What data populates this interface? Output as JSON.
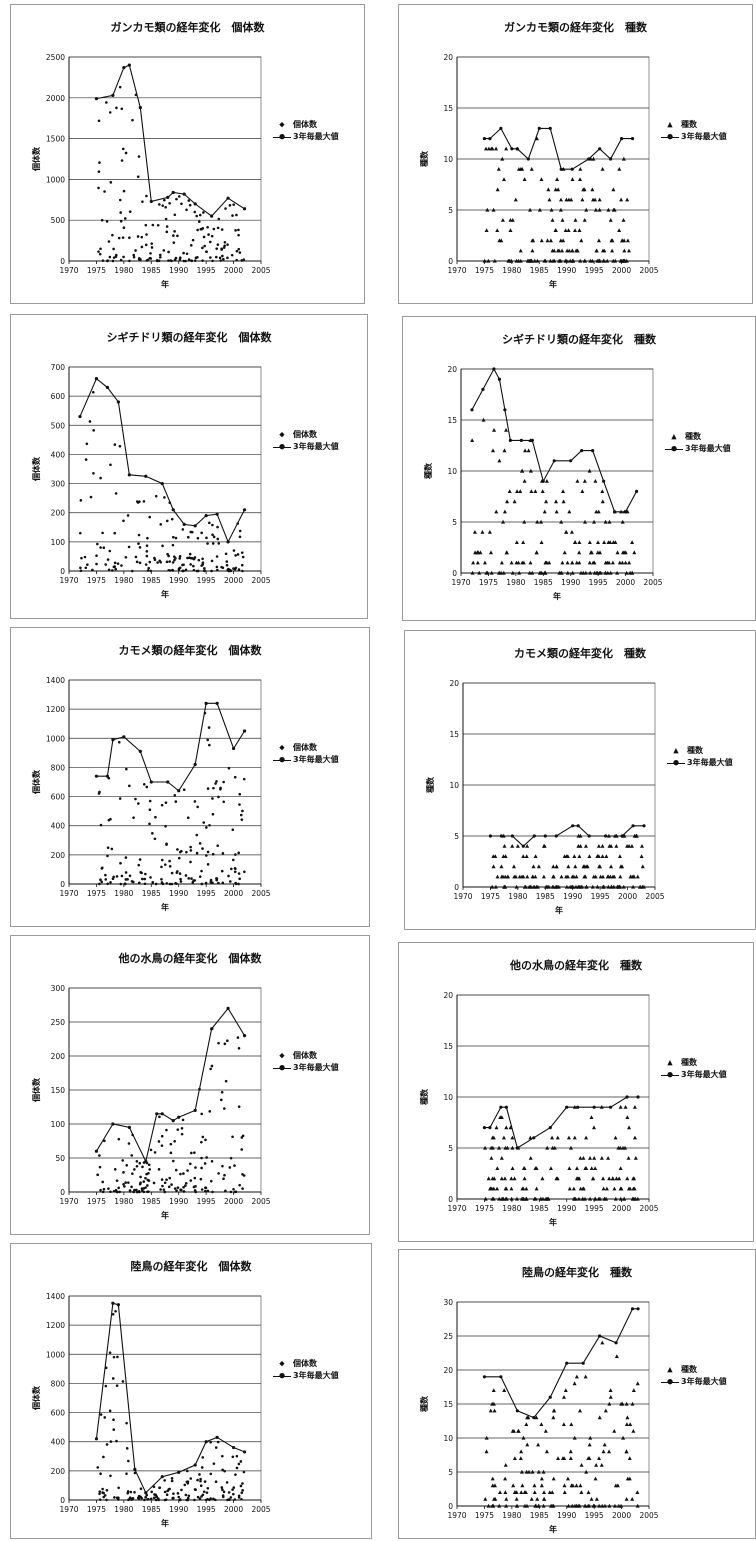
{
  "legend": {
    "count": "個体数",
    "species": "種数",
    "max3": "3年毎最大値"
  },
  "chart_data": [
    {
      "type": "scatter",
      "title": "ガンカモ類の経年変化　個体数",
      "xlabel": "年",
      "ylabel": "個体数",
      "xlim": [
        1970,
        2005
      ],
      "ylim": [
        0,
        2500
      ],
      "xticks": [
        1970,
        1975,
        1980,
        1985,
        1990,
        1995,
        2000,
        2005
      ],
      "yticks": [
        0,
        500,
        1000,
        1500,
        2000,
        2500
      ],
      "marker": "diamond",
      "scatter_series": "個体数",
      "line_series": "3年毎最大値",
      "max_line": {
        "x": [
          1975,
          1978,
          1980,
          1981,
          1983,
          1985,
          1988,
          1989,
          1991,
          1993,
          1996,
          1999,
          2002
        ],
        "y": [
          1990,
          2030,
          2370,
          2400,
          1880,
          730,
          780,
          840,
          820,
          700,
          550,
          770,
          640
        ]
      }
    },
    {
      "type": "scatter",
      "title": "ガンカモ類の経年変化　種数",
      "xlabel": "年",
      "ylabel": "種数",
      "xlim": [
        1970,
        2005
      ],
      "ylim": [
        0,
        20
      ],
      "xticks": [
        1970,
        1975,
        1980,
        1985,
        1990,
        1995,
        2000,
        2005
      ],
      "yticks": [
        0,
        5,
        10,
        15,
        20
      ],
      "marker": "triangle",
      "scatter_series": "種数",
      "line_series": "3年毎最大値",
      "max_line": {
        "x": [
          1975,
          1976,
          1978,
          1980,
          1981,
          1983,
          1985,
          1987,
          1989,
          1991,
          1994,
          1996,
          1998,
          2000,
          2002
        ],
        "y": [
          12,
          12,
          13,
          11,
          11,
          10,
          13,
          13,
          9,
          9,
          10,
          11,
          10,
          12,
          12
        ]
      }
    },
    {
      "type": "scatter",
      "title": "シギチドリ類の経年変化　個体数",
      "xlabel": "年",
      "ylabel": "個体数",
      "xlim": [
        1970,
        2005
      ],
      "ylim": [
        0,
        700
      ],
      "xticks": [
        1970,
        1975,
        1980,
        1985,
        1990,
        1995,
        2000,
        2005
      ],
      "yticks": [
        0,
        100,
        200,
        300,
        400,
        500,
        600,
        700
      ],
      "marker": "diamond",
      "scatter_series": "個体数",
      "line_series": "3年毎最大値",
      "max_line": {
        "x": [
          1972,
          1975,
          1977,
          1979,
          1981,
          1984,
          1987,
          1989,
          1991,
          1993,
          1995,
          1997,
          1999,
          2002
        ],
        "y": [
          530,
          660,
          630,
          580,
          330,
          325,
          300,
          210,
          160,
          155,
          190,
          195,
          100,
          210
        ]
      }
    },
    {
      "type": "scatter",
      "title": "シギチドリ類の経年変化　種数",
      "xlabel": "年",
      "ylabel": "種数",
      "xlim": [
        1970,
        2005
      ],
      "ylim": [
        0,
        20
      ],
      "xticks": [
        1970,
        1975,
        1980,
        1985,
        1990,
        1995,
        2000,
        2005
      ],
      "yticks": [
        0,
        5,
        10,
        15,
        20
      ],
      "marker": "triangle",
      "scatter_series": "種数",
      "line_series": "3年毎最大値",
      "max_line": {
        "x": [
          1972,
          1974,
          1976,
          1977,
          1978,
          1979,
          1981,
          1983,
          1985,
          1987,
          1990,
          1992,
          1994,
          1996,
          1998,
          2000,
          2002
        ],
        "y": [
          16,
          18,
          20,
          19,
          16,
          13,
          13,
          13,
          9,
          11,
          11,
          12,
          12,
          9,
          6,
          6,
          8
        ]
      }
    },
    {
      "type": "scatter",
      "title": "カモメ類の経年変化　個体数",
      "xlabel": "年",
      "ylabel": "個体数",
      "xlim": [
        1970,
        2005
      ],
      "ylim": [
        0,
        1400
      ],
      "xticks": [
        1970,
        1975,
        1980,
        1985,
        1990,
        1995,
        2000,
        2005
      ],
      "yticks": [
        0,
        200,
        400,
        600,
        800,
        1000,
        1200,
        1400
      ],
      "marker": "diamond",
      "scatter_series": "個体数",
      "line_series": "3年毎最大値",
      "max_line": {
        "x": [
          1975,
          1977,
          1978,
          1980,
          1983,
          1985,
          1988,
          1990,
          1993,
          1995,
          1997,
          2000,
          2002
        ],
        "y": [
          740,
          740,
          990,
          1010,
          910,
          700,
          700,
          640,
          820,
          1240,
          1240,
          930,
          1050
        ]
      }
    },
    {
      "type": "scatter",
      "title": "カモメ類の経年変化　種数",
      "xlabel": "年",
      "ylabel": "種数",
      "xlim": [
        1970,
        2005
      ],
      "ylim": [
        0,
        20
      ],
      "xticks": [
        1970,
        1975,
        1980,
        1985,
        1990,
        1995,
        2000,
        2005
      ],
      "yticks": [
        0,
        5,
        10,
        15,
        20
      ],
      "marker": "triangle",
      "scatter_series": "種数",
      "line_series": "3年毎最大値",
      "max_line": {
        "x": [
          1975,
          1977,
          1979,
          1981,
          1983,
          1985,
          1987,
          1990,
          1991,
          1993,
          1996,
          1999,
          2001,
          2003
        ],
        "y": [
          5,
          5,
          5,
          4,
          5,
          5,
          5,
          6,
          6,
          5,
          5,
          5,
          6,
          6
        ]
      }
    },
    {
      "type": "scatter",
      "title": "他の水鳥の経年変化　個体数",
      "xlabel": "年",
      "ylabel": "個体数",
      "xlim": [
        1970,
        2005
      ],
      "ylim": [
        0,
        300
      ],
      "xticks": [
        1970,
        1975,
        1980,
        1985,
        1990,
        1995,
        2000,
        2005
      ],
      "yticks": [
        0,
        50,
        100,
        150,
        200,
        250,
        300
      ],
      "marker": "diamond",
      "scatter_series": "個体数",
      "line_series": "3年毎最大値",
      "max_line": {
        "x": [
          1975,
          1978,
          1981,
          1984,
          1986,
          1987,
          1989,
          1990,
          1993,
          1996,
          1999,
          2002
        ],
        "y": [
          60,
          100,
          95,
          45,
          115,
          115,
          105,
          110,
          120,
          240,
          270,
          230
        ]
      }
    },
    {
      "type": "scatter",
      "title": "他の水鳥の経年変化　種数",
      "xlabel": "年",
      "ylabel": "種数",
      "xlim": [
        1970,
        2005
      ],
      "ylim": [
        0,
        20
      ],
      "xticks": [
        1970,
        1975,
        1980,
        1985,
        1990,
        1995,
        2000,
        2005
      ],
      "yticks": [
        0,
        5,
        10,
        15,
        20
      ],
      "marker": "triangle",
      "scatter_series": "種数",
      "line_series": "3年毎最大値",
      "max_line": {
        "x": [
          1975,
          1976,
          1978,
          1979,
          1981,
          1984,
          1987,
          1990,
          1992,
          1995,
          1998,
          2001,
          2003
        ],
        "y": [
          7,
          7,
          9,
          9,
          5,
          6,
          7,
          9,
          9,
          9,
          9,
          10,
          10
        ]
      }
    },
    {
      "type": "scatter",
      "title": "陸鳥の経年変化　個体数",
      "xlabel": "年",
      "ylabel": "個体数",
      "xlim": [
        1970,
        2005
      ],
      "ylim": [
        0,
        1400
      ],
      "xticks": [
        1970,
        1975,
        1980,
        1985,
        1990,
        1995,
        2000,
        2005
      ],
      "yticks": [
        0,
        200,
        400,
        600,
        800,
        1000,
        1200,
        1400
      ],
      "marker": "diamond",
      "scatter_series": "個体数",
      "line_series": "3年毎最大値",
      "max_line": {
        "x": [
          1975,
          1978,
          1979,
          1982,
          1984,
          1987,
          1990,
          1993,
          1995,
          1997,
          2000,
          2002
        ],
        "y": [
          420,
          1350,
          1340,
          210,
          50,
          160,
          190,
          240,
          400,
          430,
          360,
          330
        ]
      }
    },
    {
      "type": "scatter",
      "title": "陸鳥の経年変化　種数",
      "xlabel": "年",
      "ylabel": "種数",
      "xlim": [
        1970,
        2005
      ],
      "ylim": [
        0,
        30
      ],
      "xticks": [
        1970,
        1975,
        1980,
        1985,
        1990,
        1995,
        2000,
        2005
      ],
      "yticks": [
        0,
        5,
        10,
        15,
        20,
        25,
        30
      ],
      "marker": "triangle",
      "scatter_series": "種数",
      "line_series": "3年毎最大値",
      "max_line": {
        "x": [
          1975,
          1978,
          1981,
          1984,
          1987,
          1990,
          1993,
          1996,
          1999,
          2002,
          2003
        ],
        "y": [
          19,
          19,
          14,
          13,
          16,
          21,
          21,
          25,
          24,
          29,
          29
        ]
      }
    }
  ]
}
